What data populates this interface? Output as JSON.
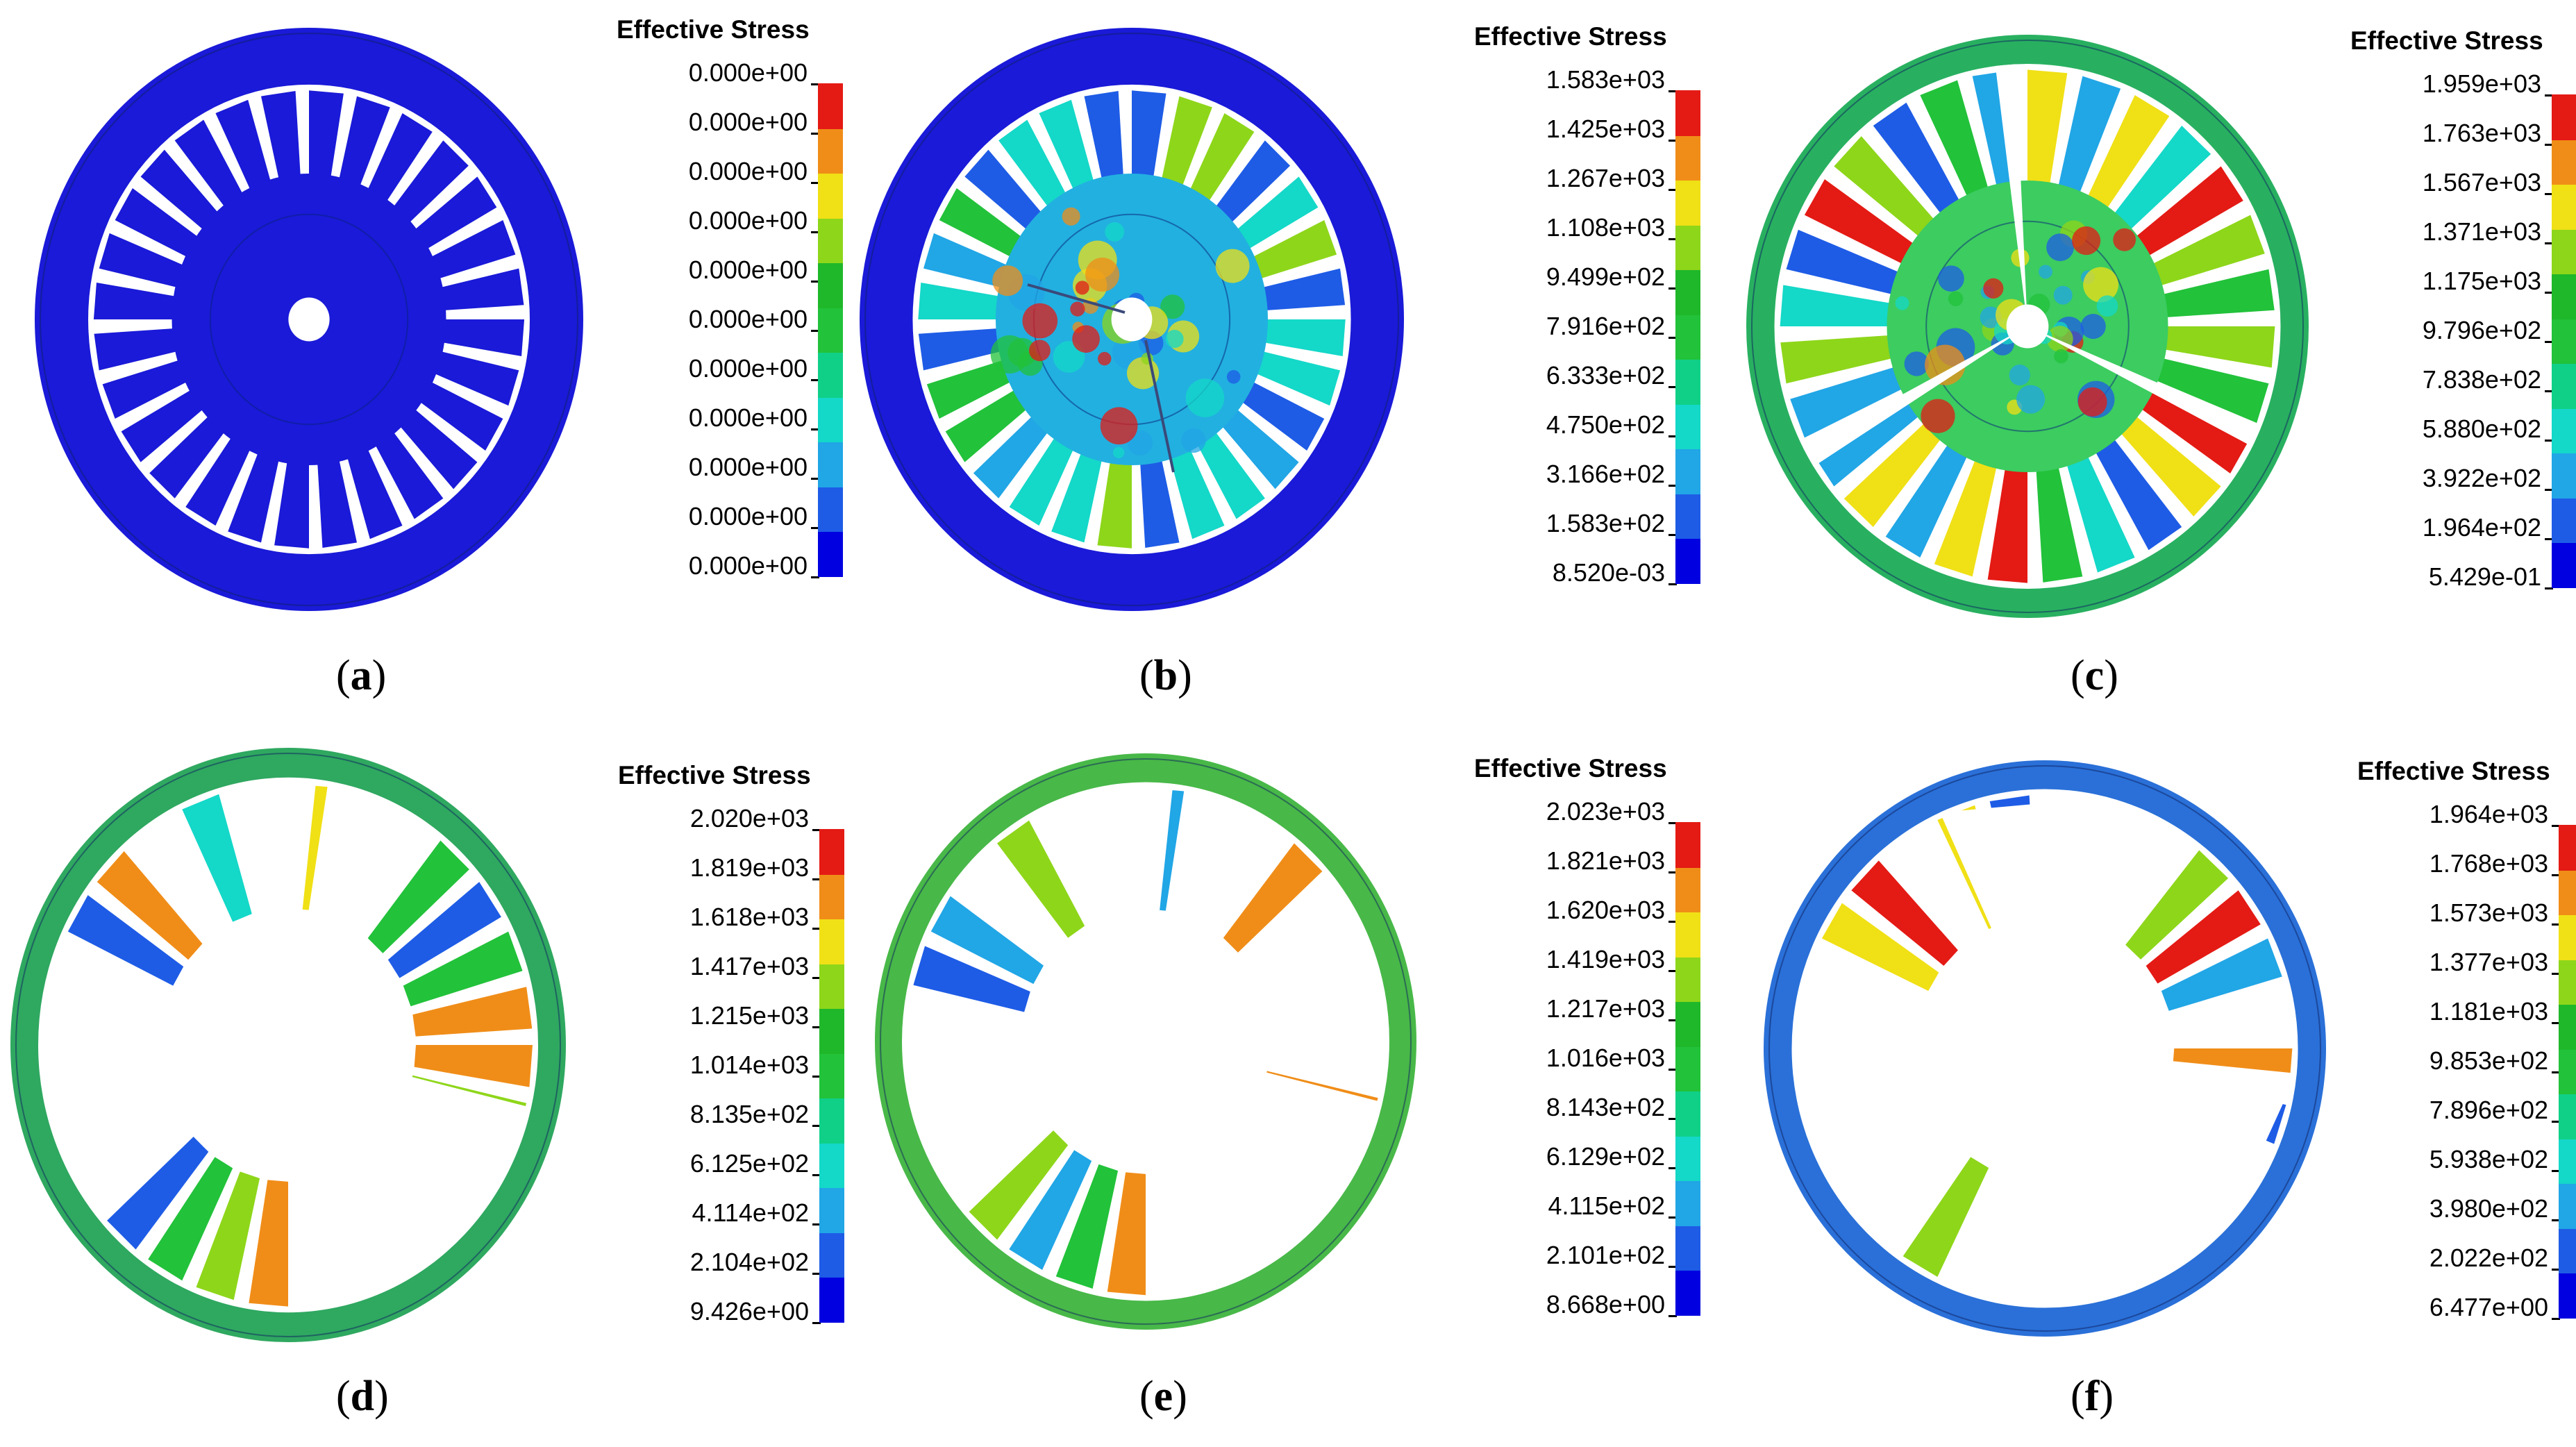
{
  "colorbar_colors": [
    "#0000e0",
    "#1e5ce6",
    "#21a6e6",
    "#14d8c8",
    "#10d088",
    "#22c23a",
    "#1fb82a",
    "#8ed61a",
    "#f0e016",
    "#f08d18",
    "#e41a14"
  ],
  "panels": [
    {
      "id": "a",
      "caption_letter": "a",
      "legend_title": "Effective Stress",
      "legend_values": [
        "0.000e+00",
        "0.000e+00",
        "0.000e+00",
        "0.000e+00",
        "0.000e+00",
        "0.000e+00",
        "0.000e+00",
        "0.000e+00",
        "0.000e+00",
        "0.000e+00",
        "0.000e+00"
      ],
      "state": "intact",
      "rim_color": "#1a1ad8",
      "hub_color": "#1a1ad8"
    },
    {
      "id": "b",
      "caption_letter": "b",
      "legend_title": "Effective Stress",
      "legend_values": [
        "1.583e+03",
        "1.425e+03",
        "1.267e+03",
        "1.108e+03",
        "9.499e+02",
        "7.916e+02",
        "6.333e+02",
        "4.750e+02",
        "3.166e+02",
        "1.583e+02",
        "8.520e-03"
      ],
      "state": "cracked",
      "rim_color": "#1a1ad8",
      "hub_color": "#22b0e0"
    },
    {
      "id": "c",
      "caption_letter": "c",
      "legend_title": "Effective Stress",
      "legend_values": [
        "1.959e+03",
        "1.763e+03",
        "1.567e+03",
        "1.371e+03",
        "1.175e+03",
        "9.796e+02",
        "7.838e+02",
        "5.880e+02",
        "3.922e+02",
        "1.964e+02",
        "5.429e-01"
      ],
      "state": "split",
      "rim_color": "#28b060",
      "hub_color": "#3ccc60"
    },
    {
      "id": "d",
      "caption_letter": "d",
      "legend_title": "Effective Stress",
      "legend_values": [
        "2.020e+03",
        "1.819e+03",
        "1.618e+03",
        "1.417e+03",
        "1.215e+03",
        "1.014e+03",
        "8.135e+02",
        "6.125e+02",
        "4.114e+02",
        "2.104e+02",
        "9.426e+00"
      ],
      "state": "fragmented",
      "rim_color": "#2fa860",
      "hub_color": "#30c070"
    },
    {
      "id": "e",
      "caption_letter": "e",
      "legend_title": "Effective Stress",
      "legend_values": [
        "2.023e+03",
        "1.821e+03",
        "1.620e+03",
        "1.419e+03",
        "1.217e+03",
        "1.016e+03",
        "8.143e+02",
        "6.129e+02",
        "4.115e+02",
        "2.101e+02",
        "8.668e+00"
      ],
      "state": "fragmented",
      "rim_color": "#48b848",
      "hub_color": "#30c070"
    },
    {
      "id": "f",
      "caption_letter": "f",
      "legend_title": "Effective Stress",
      "legend_values": [
        "1.964e+03",
        "1.768e+03",
        "1.573e+03",
        "1.377e+03",
        "1.181e+03",
        "9.853e+02",
        "7.896e+02",
        "5.938e+02",
        "3.980e+02",
        "2.022e+02",
        "6.477e+00"
      ],
      "state": "dispersed",
      "rim_color": "#2a70d8",
      "hub_color": "#2a9ad8"
    }
  ]
}
